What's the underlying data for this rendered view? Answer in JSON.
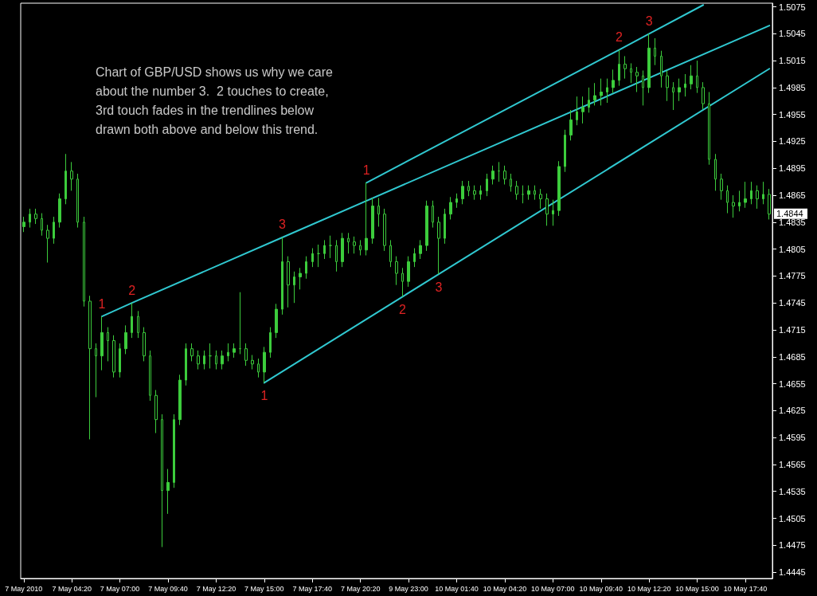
{
  "chart_data": {
    "type": "candlestick",
    "categories": [
      "7 May 2010",
      null,
      null,
      null,
      null,
      null,
      null,
      null,
      "7 May 04:20",
      null,
      null,
      null,
      null,
      null,
      null,
      null,
      "7 May 07:00",
      null,
      null,
      null,
      null,
      null,
      null,
      null,
      "7 May 09:40",
      null,
      null,
      null,
      null,
      null,
      null,
      null,
      "7 May 12:20",
      null,
      null,
      null,
      null,
      null,
      null,
      null,
      "7 May 15:00",
      null,
      null,
      null,
      null,
      null,
      null,
      null,
      "7 May 17:40",
      null,
      null,
      null,
      null,
      null,
      null,
      null,
      "7 May 20:20",
      null,
      null,
      null,
      null,
      null,
      null,
      null,
      "9 May 23:00",
      null,
      null,
      null,
      null,
      null,
      null,
      null,
      "10 May 01:40",
      null,
      null,
      null,
      null,
      null,
      null,
      null,
      "10 May 04:20",
      null,
      null,
      null,
      null,
      null,
      null,
      null,
      "10 May 07:00",
      null,
      null,
      null,
      null,
      null,
      null,
      null,
      "10 May 09:40",
      null,
      null,
      null,
      null,
      null,
      null,
      null,
      "10 May 12:20",
      null,
      null,
      null,
      null,
      null,
      null,
      null,
      "10 May 15:00",
      null,
      null,
      null,
      null,
      null,
      null,
      null,
      "10 May 17:40",
      null,
      null,
      null,
      null
    ],
    "ylim": [
      1.4438,
      1.5079
    ],
    "yticks": [
      1.4445,
      1.4475,
      1.4505,
      1.4535,
      1.4565,
      1.4595,
      1.4625,
      1.4655,
      1.4685,
      1.4715,
      1.4745,
      1.4775,
      1.4805,
      1.4835,
      1.4865,
      1.4895,
      1.4925,
      1.4955,
      1.4985,
      1.5015,
      1.5045,
      1.5075
    ],
    "grid": false,
    "marker": "none",
    "line_style": "solid",
    "annotations": [
      "Chart of GBP/USD shows us why we care about the number 3.  2 touches to create, 3rd touch fades in the trendlines below drawn both above and below this trend.",
      "1.4844",
      "1",
      "2",
      "3",
      "1",
      "2",
      "3",
      "1",
      "2",
      "3"
    ],
    "series": [
      {
        "type": "candlestick",
        "color": "#3ccc3c",
        "ohlc": [
          [
            1.483,
            1.4841,
            1.4824,
            1.4835
          ],
          [
            1.4835,
            1.485,
            1.4829,
            1.4844
          ],
          [
            1.4844,
            1.485,
            1.4833,
            1.4839
          ],
          [
            1.4839,
            1.4845,
            1.482,
            1.4826
          ],
          [
            1.4826,
            1.4832,
            1.479,
            1.4817
          ],
          [
            1.4817,
            1.4841,
            1.4811,
            1.4835
          ],
          [
            1.4835,
            1.4867,
            1.4829,
            1.4861
          ],
          [
            1.4861,
            1.4911,
            1.4855,
            1.4892
          ],
          [
            1.4892,
            1.4902,
            1.487,
            1.4883
          ],
          [
            1.4883,
            1.4889,
            1.4829,
            1.4835
          ],
          [
            1.4835,
            1.4841,
            1.4741,
            1.4747
          ],
          [
            1.4747,
            1.4753,
            1.4593,
            1.4694
          ],
          [
            1.4694,
            1.47,
            1.464,
            1.4686
          ],
          [
            1.4686,
            1.473,
            1.467,
            1.4712
          ],
          [
            1.4712,
            1.4718,
            1.468,
            1.4703
          ],
          [
            1.4703,
            1.4709,
            1.4662,
            1.4668
          ],
          [
            1.4668,
            1.47,
            1.4662,
            1.4694
          ],
          [
            1.4694,
            1.472,
            1.4688,
            1.4712
          ],
          [
            1.4712,
            1.4745,
            1.4706,
            1.473
          ],
          [
            1.473,
            1.4736,
            1.4706,
            1.4712
          ],
          [
            1.4712,
            1.4718,
            1.468,
            1.4686
          ],
          [
            1.4686,
            1.4692,
            1.4636,
            1.4642
          ],
          [
            1.4642,
            1.4648,
            1.46,
            1.4615
          ],
          [
            1.4615,
            1.4621,
            1.4473,
            1.4536
          ],
          [
            1.4536,
            1.456,
            1.451,
            1.4545
          ],
          [
            1.4545,
            1.4621,
            1.4539,
            1.4615
          ],
          [
            1.4615,
            1.4665,
            1.4609,
            1.4659
          ],
          [
            1.4659,
            1.47,
            1.4653,
            1.4694
          ],
          [
            1.4694,
            1.47,
            1.468,
            1.4686
          ],
          [
            1.4686,
            1.4692,
            1.4671,
            1.4677
          ],
          [
            1.4677,
            1.4692,
            1.4671,
            1.4686
          ],
          [
            1.4686,
            1.47,
            1.4672,
            1.4686
          ],
          [
            1.4686,
            1.4692,
            1.4671,
            1.4677
          ],
          [
            1.4677,
            1.4692,
            1.4671,
            1.4686
          ],
          [
            1.4686,
            1.47,
            1.468,
            1.469
          ],
          [
            1.469,
            1.47,
            1.4684,
            1.4694
          ],
          [
            1.4694,
            1.4757,
            1.4688,
            1.4694
          ],
          [
            1.4694,
            1.47,
            1.4675,
            1.4681
          ],
          [
            1.4681,
            1.4687,
            1.4671,
            1.4677
          ],
          [
            1.4677,
            1.4683,
            1.4662,
            1.4668
          ],
          [
            1.4668,
            1.4696,
            1.4656,
            1.469
          ],
          [
            1.469,
            1.4718,
            1.4684,
            1.4712
          ],
          [
            1.4712,
            1.4744,
            1.4706,
            1.4738
          ],
          [
            1.4738,
            1.4818,
            1.4732,
            1.4791
          ],
          [
            1.4791,
            1.4797,
            1.474,
            1.4765
          ],
          [
            1.4765,
            1.478,
            1.4745,
            1.4774
          ],
          [
            1.4774,
            1.4784,
            1.476,
            1.4778
          ],
          [
            1.4778,
            1.4797,
            1.4772,
            1.4791
          ],
          [
            1.4791,
            1.4806,
            1.4785,
            1.48
          ],
          [
            1.48,
            1.481,
            1.4785,
            1.48
          ],
          [
            1.48,
            1.4815,
            1.4794,
            1.4809
          ],
          [
            1.4809,
            1.482,
            1.4795,
            1.4809
          ],
          [
            1.4809,
            1.4815,
            1.478,
            1.4791
          ],
          [
            1.4791,
            1.4823,
            1.4785,
            1.4817
          ],
          [
            1.4817,
            1.4823,
            1.48,
            1.4813
          ],
          [
            1.4813,
            1.4819,
            1.48,
            1.4809
          ],
          [
            1.4809,
            1.4815,
            1.4798,
            1.4804
          ],
          [
            1.4804,
            1.4879,
            1.4798,
            1.4817
          ],
          [
            1.4817,
            1.4862,
            1.4811,
            1.4853
          ],
          [
            1.4853,
            1.4862,
            1.483,
            1.4844
          ],
          [
            1.4844,
            1.485,
            1.4803,
            1.4809
          ],
          [
            1.4809,
            1.4815,
            1.4785,
            1.4791
          ],
          [
            1.4791,
            1.4797,
            1.4765,
            1.4778
          ],
          [
            1.4778,
            1.4784,
            1.4752,
            1.4769
          ],
          [
            1.4769,
            1.4797,
            1.4763,
            1.4791
          ],
          [
            1.4791,
            1.4806,
            1.4785,
            1.48
          ],
          [
            1.48,
            1.4815,
            1.4794,
            1.4809
          ],
          [
            1.4809,
            1.4859,
            1.4803,
            1.4853
          ],
          [
            1.4853,
            1.4859,
            1.4829,
            1.4835
          ],
          [
            1.4835,
            1.4841,
            1.4777,
            1.4817
          ],
          [
            1.4817,
            1.485,
            1.4811,
            1.4844
          ],
          [
            1.4844,
            1.4863,
            1.4838,
            1.4857
          ],
          [
            1.4857,
            1.4867,
            1.4851,
            1.4861
          ],
          [
            1.4861,
            1.4881,
            1.4855,
            1.4875
          ],
          [
            1.4875,
            1.4881,
            1.4864,
            1.487
          ],
          [
            1.487,
            1.4876,
            1.486,
            1.4866
          ],
          [
            1.4866,
            1.4876,
            1.486,
            1.487
          ],
          [
            1.487,
            1.4889,
            1.4864,
            1.4883
          ],
          [
            1.4883,
            1.4898,
            1.4877,
            1.4892
          ],
          [
            1.4892,
            1.4902,
            1.488,
            1.4892
          ],
          [
            1.4892,
            1.4898,
            1.4877,
            1.4883
          ],
          [
            1.4883,
            1.4889,
            1.4869,
            1.4875
          ],
          [
            1.4875,
            1.4881,
            1.486,
            1.4866
          ],
          [
            1.4866,
            1.4876,
            1.4856,
            1.4866
          ],
          [
            1.4866,
            1.4876,
            1.486,
            1.487
          ],
          [
            1.487,
            1.4876,
            1.486,
            1.4866
          ],
          [
            1.4866,
            1.4872,
            1.485,
            1.4861
          ],
          [
            1.4861,
            1.4867,
            1.4831,
            1.4844
          ],
          [
            1.4844,
            1.486,
            1.4831,
            1.4848
          ],
          [
            1.4848,
            1.4903,
            1.4842,
            1.4897
          ],
          [
            1.4897,
            1.4938,
            1.4891,
            1.4932
          ],
          [
            1.4932,
            1.496,
            1.4926,
            1.4949
          ],
          [
            1.4949,
            1.4975,
            1.4943,
            1.4958
          ],
          [
            1.4958,
            1.4975,
            1.4945,
            1.4963
          ],
          [
            1.4963,
            1.4985,
            1.4957,
            1.4971
          ],
          [
            1.4971,
            1.499,
            1.4965,
            1.4976
          ],
          [
            1.4976,
            1.4995,
            1.4965,
            1.498
          ],
          [
            1.498,
            1.4995,
            1.4968,
            1.4985
          ],
          [
            1.4985,
            1.5005,
            1.4979,
            1.4993
          ],
          [
            1.4993,
            1.5027,
            1.4987,
            1.5011
          ],
          [
            1.5011,
            1.502,
            1.4995,
            1.5006
          ],
          [
            1.5006,
            1.5012,
            1.499,
            1.5002
          ],
          [
            1.5002,
            1.5008,
            1.498,
            1.4998
          ],
          [
            1.4998,
            1.5004,
            1.4965,
            1.4985
          ],
          [
            1.4985,
            1.5045,
            1.4979,
            1.5029
          ],
          [
            1.5029,
            1.504,
            1.501,
            1.502
          ],
          [
            1.502,
            1.5026,
            1.4985,
            1.4998
          ],
          [
            1.4998,
            1.5004,
            1.497,
            1.4985
          ],
          [
            1.4985,
            1.4991,
            1.496,
            1.498
          ],
          [
            1.498,
            1.4995,
            1.497,
            1.4985
          ],
          [
            1.4985,
            1.5,
            1.4975,
            1.4989
          ],
          [
            1.4989,
            1.501,
            1.4983,
            1.4998
          ],
          [
            1.4998,
            1.5015,
            1.4979,
            1.4985
          ],
          [
            1.4985,
            1.4991,
            1.4961,
            1.4967
          ],
          [
            1.4967,
            1.498,
            1.4899,
            1.4905
          ],
          [
            1.4905,
            1.4911,
            1.487,
            1.4883
          ],
          [
            1.4883,
            1.4889,
            1.486,
            1.487
          ],
          [
            1.487,
            1.4876,
            1.4845,
            1.4857
          ],
          [
            1.4857,
            1.4865,
            1.484,
            1.4853
          ],
          [
            1.4853,
            1.487,
            1.4847,
            1.4857
          ],
          [
            1.4857,
            1.488,
            1.4851,
            1.4861
          ],
          [
            1.4861,
            1.488,
            1.4855,
            1.487
          ],
          [
            1.487,
            1.4876,
            1.485,
            1.4861
          ],
          [
            1.4861,
            1.488,
            1.4855,
            1.4866
          ],
          [
            1.4866,
            1.4872,
            1.4838,
            1.4844
          ]
        ]
      },
      {
        "type": "line",
        "color": "#30c8d0",
        "values": [
          null,
          null,
          null,
          null,
          null,
          null,
          null,
          null,
          null,
          null,
          null,
          null,
          null,
          1.473,
          null,
          null,
          null,
          null,
          1.4745,
          null,
          null,
          null,
          null,
          null,
          null,
          null,
          null,
          null,
          null,
          null,
          null,
          null,
          null,
          null,
          null,
          null,
          null,
          null,
          null,
          null,
          null,
          null,
          null,
          1.4818,
          null,
          null,
          null,
          null,
          null,
          null,
          null,
          null,
          null,
          null,
          null,
          null,
          null,
          null,
          null,
          null,
          null,
          null,
          null,
          null,
          null,
          null,
          null,
          null,
          null,
          null,
          null,
          null,
          null,
          null,
          null,
          null,
          null,
          null,
          null,
          null,
          null,
          null,
          null,
          null,
          null,
          null,
          null,
          null,
          null,
          null,
          null,
          null,
          null,
          null,
          null,
          null,
          null,
          null,
          null,
          null,
          null,
          null,
          null,
          null,
          null,
          null,
          null,
          null,
          null,
          null,
          null,
          null,
          null,
          null,
          null,
          null,
          null,
          null,
          null,
          null,
          null,
          null,
          null,
          null,
          1.5054
        ]
      },
      {
        "type": "line",
        "color": "#30c8d0",
        "values": [
          null,
          null,
          null,
          null,
          null,
          null,
          null,
          null,
          null,
          null,
          null,
          null,
          null,
          null,
          null,
          null,
          null,
          null,
          null,
          null,
          null,
          null,
          null,
          null,
          null,
          null,
          null,
          null,
          null,
          null,
          null,
          null,
          null,
          null,
          null,
          null,
          null,
          null,
          null,
          null,
          null,
          null,
          null,
          null,
          null,
          null,
          null,
          null,
          null,
          null,
          null,
          null,
          null,
          null,
          null,
          null,
          null,
          1.4879,
          null,
          null,
          null,
          null,
          null,
          null,
          null,
          null,
          null,
          null,
          null,
          null,
          null,
          null,
          null,
          null,
          null,
          null,
          null,
          null,
          null,
          null,
          null,
          null,
          null,
          null,
          null,
          null,
          null,
          null,
          null,
          null,
          null,
          null,
          null,
          null,
          null,
          null,
          null,
          null,
          null,
          1.5027,
          null,
          null,
          null,
          null,
          1.5045,
          null,
          null,
          null,
          null,
          null,
          null,
          null,
          null,
          1.5077,
          null,
          null,
          null,
          null,
          null,
          null,
          null,
          null,
          null,
          null,
          null
        ]
      },
      {
        "type": "line",
        "color": "#30c8d0",
        "values": [
          null,
          null,
          null,
          null,
          null,
          null,
          null,
          null,
          null,
          null,
          null,
          null,
          null,
          null,
          null,
          null,
          null,
          null,
          null,
          null,
          null,
          null,
          null,
          null,
          null,
          null,
          null,
          null,
          null,
          null,
          null,
          null,
          null,
          null,
          null,
          null,
          null,
          null,
          null,
          null,
          1.4656,
          null,
          null,
          null,
          null,
          null,
          null,
          null,
          null,
          null,
          null,
          null,
          null,
          null,
          null,
          null,
          null,
          null,
          null,
          null,
          null,
          null,
          null,
          1.4752,
          null,
          null,
          null,
          null,
          null,
          1.4777,
          null,
          null,
          null,
          null,
          null,
          null,
          null,
          null,
          null,
          null,
          null,
          null,
          null,
          null,
          null,
          null,
          null,
          null,
          null,
          null,
          null,
          null,
          null,
          null,
          null,
          null,
          null,
          null,
          null,
          null,
          null,
          null,
          null,
          null,
          null,
          null,
          null,
          null,
          null,
          null,
          null,
          null,
          null,
          null,
          null,
          null,
          null,
          null,
          null,
          null,
          null,
          null,
          null,
          null,
          1.5006
        ]
      }
    ]
  }
}
